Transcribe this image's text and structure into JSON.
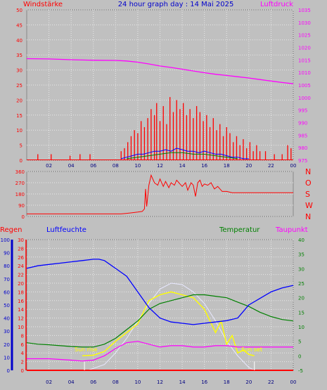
{
  "chart_data": [
    {
      "id": "wind",
      "type": "line",
      "title": "24 hour graph day : 14 Mai 2025",
      "left_label": "Windstärke",
      "right_label": "Luftdruck",
      "ylim_left": [
        0,
        50
      ],
      "ylim_right": [
        975,
        1035
      ],
      "left_ticks": [
        "0",
        "5",
        "10",
        "15",
        "20",
        "25",
        "30",
        "35",
        "40",
        "45",
        "50"
      ],
      "right_ticks": [
        "975",
        "980",
        "985",
        "990",
        "995",
        "1000",
        "1005",
        "1010",
        "1015",
        "1020",
        "1025",
        "1030",
        "1035"
      ],
      "x_ticks": [
        "02",
        "04",
        "06",
        "08",
        "10",
        "12",
        "14",
        "16",
        "18",
        "20",
        "22",
        "00"
      ],
      "grid": true,
      "pressure": {
        "x": [
          0,
          2,
          4,
          6,
          8,
          9,
          10,
          11,
          12,
          13,
          14,
          15,
          16,
          17,
          18,
          19,
          20,
          21,
          22,
          23,
          24
        ],
        "y": [
          1015.5,
          1015.4,
          1015.1,
          1014.9,
          1014.8,
          1014.6,
          1014.1,
          1013.4,
          1012.6,
          1012.0,
          1011.3,
          1010.6,
          1009.9,
          1009.3,
          1008.8,
          1008.3,
          1007.8,
          1007.2,
          1006.6,
          1006.0,
          1005.5
        ]
      },
      "gust_spikes": {
        "x": [
          1.0,
          2.2,
          3.9,
          4.8,
          5.7,
          8.5,
          8.8,
          9.1,
          9.4,
          9.7,
          10.0,
          10.3,
          10.6,
          10.9,
          11.2,
          11.5,
          11.7,
          12.0,
          12.3,
          12.6,
          12.9,
          13.2,
          13.5,
          13.8,
          14.1,
          14.4,
          14.7,
          15.0,
          15.3,
          15.6,
          15.9,
          16.2,
          16.5,
          16.8,
          17.1,
          17.4,
          17.7,
          18.0,
          18.3,
          18.6,
          18.9,
          19.2,
          19.5,
          19.8,
          20.1,
          20.4,
          20.7,
          21.0,
          21.5,
          22.3,
          23.0,
          23.5,
          23.8
        ],
        "y": [
          2,
          2,
          1.5,
          2,
          2,
          3,
          4,
          6,
          8,
          10,
          9,
          13,
          11,
          14,
          17,
          15,
          19,
          13,
          18,
          12,
          21,
          16,
          20,
          17,
          19,
          15,
          17,
          14,
          18,
          16,
          13,
          15,
          11,
          14,
          10,
          12,
          8,
          11,
          9,
          6,
          8,
          5,
          7,
          4,
          6,
          3,
          5,
          3,
          3,
          2,
          2,
          5,
          4
        ]
      },
      "wind_mean": {
        "x": [
          8.5,
          9,
          9.5,
          10,
          10.5,
          11,
          11.5,
          12,
          12.5,
          13,
          13.5,
          14,
          14.5,
          15,
          15.5,
          16,
          16.5,
          17,
          17.5,
          18,
          18.5,
          19,
          19.5,
          20
        ],
        "y": [
          0.5,
          1,
          1.5,
          2,
          2,
          2.5,
          3,
          3,
          3.5,
          3,
          4,
          3.5,
          3,
          3,
          2.5,
          3,
          2.5,
          2,
          2,
          1.5,
          1,
          1,
          0.5,
          0.5
        ]
      },
      "wind_avg": {
        "x": [
          9,
          10,
          11,
          12,
          13,
          14,
          15,
          16,
          17,
          18,
          19
        ],
        "y": [
          0.5,
          1,
          1.5,
          2,
          2.5,
          2.5,
          2,
          2,
          1.5,
          1,
          0.5
        ]
      }
    },
    {
      "id": "direction",
      "type": "line",
      "ylim": [
        0,
        360
      ],
      "y_ticks": [
        "0",
        "90",
        "180",
        "270",
        "360"
      ],
      "compass": [
        "N",
        "W",
        "S",
        "O",
        "N"
      ],
      "x": [
        0,
        8.5,
        9.0,
        9.5,
        10.0,
        10.4,
        10.6,
        10.7,
        10.8,
        11.0,
        11.2,
        11.5,
        11.8,
        12.0,
        12.3,
        12.5,
        12.8,
        13.0,
        13.3,
        13.5,
        13.8,
        14.0,
        14.3,
        14.5,
        14.8,
        15.0,
        15.2,
        15.4,
        15.6,
        15.8,
        16.0,
        16.3,
        16.6,
        16.9,
        17.2,
        17.6,
        18.0,
        18.5,
        19.0,
        20.0,
        22.0,
        24.0
      ],
      "y": [
        20,
        20,
        25,
        30,
        35,
        40,
        60,
        220,
        80,
        250,
        330,
        270,
        250,
        300,
        240,
        280,
        230,
        270,
        250,
        290,
        260,
        240,
        270,
        210,
        270,
        250,
        160,
        270,
        290,
        240,
        260,
        250,
        270,
        220,
        240,
        200,
        200,
        190,
        190,
        190,
        190,
        190
      ]
    },
    {
      "id": "climate",
      "type": "line",
      "labels": {
        "regen": "Regen",
        "humidity": "Luftfeuchte",
        "temperature": "Temperatur",
        "dewpoint": "Taupunkt"
      },
      "humidity_ticks": [
        "0",
        "10",
        "20",
        "30",
        "40",
        "50",
        "60",
        "70",
        "80",
        "90",
        "100"
      ],
      "rain_ticks": [
        "0",
        "2",
        "4",
        "6",
        "8",
        "10",
        "12",
        "14",
        "16",
        "18",
        "20",
        "22",
        "24",
        "26",
        "28",
        "30"
      ],
      "temp_ticks": [
        "-5",
        "0",
        "5",
        "10",
        "15",
        "20",
        "25",
        "30",
        "35",
        "40"
      ],
      "x_ticks": [
        "02",
        "04",
        "06",
        "08",
        "10",
        "12",
        "14",
        "16",
        "18",
        "20",
        "22",
        "00"
      ],
      "annotations": {
        "sunrise": "Sun rise",
        "sunset": "Sun set"
      },
      "humidity": {
        "x": [
          0,
          1,
          2,
          3,
          4,
          5,
          6,
          6.5,
          7,
          8,
          8.5,
          9,
          10,
          11,
          12,
          13,
          14,
          15,
          16,
          17,
          18,
          19,
          19.5,
          20,
          21,
          22,
          23,
          24
        ],
        "y": [
          78,
          80,
          81,
          82,
          83,
          84,
          85,
          85,
          84,
          78,
          75,
          72,
          60,
          48,
          40,
          37,
          36,
          35,
          36,
          37,
          38,
          40,
          45,
          50,
          55,
          60,
          63,
          65
        ]
      },
      "temperature": {
        "x": [
          0,
          1,
          2,
          3,
          4,
          5,
          6,
          7,
          8,
          9,
          10,
          11,
          12,
          13,
          14,
          15,
          16,
          17,
          18,
          19,
          20,
          21,
          22,
          23,
          24
        ],
        "y": [
          4.5,
          4,
          3.8,
          3.5,
          3.2,
          3,
          3,
          4,
          6,
          9,
          12,
          16,
          18,
          19,
          20,
          21,
          21,
          20.5,
          20,
          18.5,
          17,
          15,
          13.5,
          12.5,
          12
        ]
      },
      "dewpoint": {
        "x": [
          0,
          2,
          4,
          5,
          6,
          7,
          8,
          9,
          10,
          11,
          12,
          13,
          14,
          15,
          16,
          17,
          18,
          19,
          20,
          21,
          22,
          24
        ],
        "y": [
          -1,
          -1,
          -1.5,
          -1.8,
          -1.5,
          0,
          2.5,
          4.5,
          5,
          4,
          3,
          3.5,
          3.5,
          3,
          3,
          3.5,
          3.5,
          3,
          3,
          3,
          3,
          3
        ]
      },
      "solar": {
        "x": [
          5,
          6,
          7,
          8,
          9,
          10,
          10.5,
          11,
          12,
          13,
          14,
          15,
          16,
          16.5,
          17,
          17.5,
          18,
          18.5,
          19,
          19.5,
          20,
          20.5
        ],
        "y": [
          0,
          0.2,
          1.5,
          5,
          8,
          11,
          15,
          19,
          21,
          22,
          21,
          20,
          16,
          12,
          8,
          12,
          4,
          7,
          1,
          2,
          0.5,
          0
        ]
      },
      "clear_sky": {
        "x": [
          5.5,
          7,
          8,
          9,
          10,
          11,
          12,
          13,
          14,
          15,
          16,
          17,
          18,
          19,
          20,
          20.5
        ],
        "y": [
          -5,
          -3,
          1,
          6,
          12,
          18,
          23,
          25,
          24.5,
          22,
          18,
          12,
          5,
          0,
          -4,
          -5
        ]
      },
      "rain": {
        "x": [
          0,
          24
        ],
        "y": [
          0,
          0
        ]
      }
    }
  ]
}
